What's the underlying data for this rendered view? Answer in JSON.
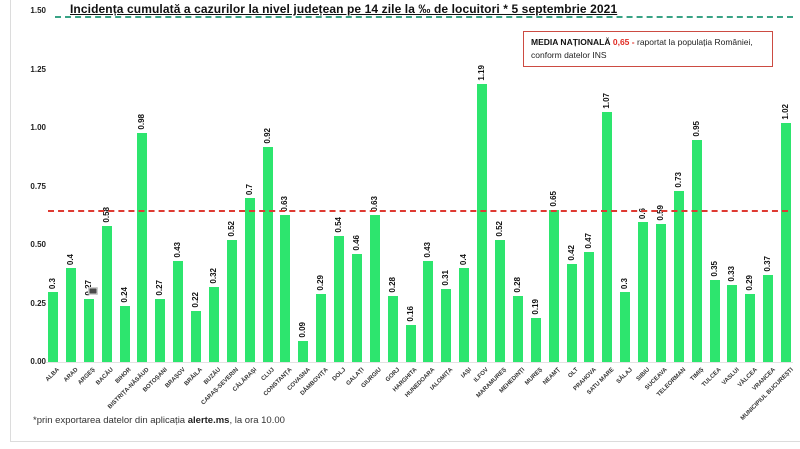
{
  "title": "Incidența cumulată a cazurilor la nivel județean pe 14 zile la ‰ de locuitori * 5 septembrie 2021",
  "legend": {
    "label": "MEDIA NAȚIONALĂ",
    "value": "0,65 -",
    "line1_rest": "raportat la populația României,",
    "line2": "conform datelor INS"
  },
  "footnote": {
    "prefix": "*prin exportarea datelor din aplicația ",
    "bold": "alerte.ms",
    "suffix": ", la ora 10.00"
  },
  "colors": {
    "bar": "#2de56e",
    "avg_line": "#de3a32",
    "title_dash": "#39a385",
    "legend_border": "#cc4b42",
    "value_red": "#e02b22"
  },
  "chart_data": {
    "type": "bar",
    "title": "Incidența cumulată a cazurilor la nivel județean pe 14 zile la ‰ de locuitori * 5 septembrie 2021",
    "ylim": [
      0,
      1.5
    ],
    "yticks": [
      "1.50",
      "1.25",
      "1.00",
      "0.75",
      "0.50",
      "0.25",
      "0.00"
    ],
    "national_average": 0.65,
    "grid": false,
    "legend_position": "top-right",
    "categories": [
      "ALBA",
      "ARAD",
      "ARGEȘ",
      "BACĂU",
      "BIHOR",
      "BISTRIȚA-NĂSĂUD",
      "BOTOȘANI",
      "BRAȘOV",
      "BRĂILA",
      "BUZĂU",
      "CARAȘ-SEVERIN",
      "CĂLĂRAȘI",
      "CLUJ",
      "CONSTANȚA",
      "COVASNA",
      "DÂMBOVIȚA",
      "DOLJ",
      "GALAȚI",
      "GIURGIU",
      "GORJ",
      "HARGHITA",
      "HUNEDOARA",
      "IALOMIȚA",
      "IAȘI",
      "ILFOV",
      "MARAMUREȘ",
      "MEHEDINȚI",
      "MUREȘ",
      "NEAMȚ",
      "OLT",
      "PRAHOVA",
      "SATU MARE",
      "SĂLAJ",
      "SIBIU",
      "SUCEAVA",
      "TELEORMAN",
      "TIMIȘ",
      "TULCEA",
      "VASLUI",
      "VÂLCEA",
      "VRANCEA",
      "MUNICIPIUL BUCUREȘTI"
    ],
    "values": [
      0.3,
      0.4,
      0.27,
      0.58,
      0.24,
      0.98,
      0.27,
      0.43,
      0.22,
      0.32,
      0.52,
      0.7,
      0.92,
      0.63,
      0.09,
      0.29,
      0.54,
      0.46,
      0.63,
      0.28,
      0.16,
      0.43,
      0.31,
      0.4,
      1.19,
      0.52,
      0.28,
      0.19,
      0.65,
      0.42,
      0.47,
      1.07,
      0.3,
      0.6,
      0.59,
      0.73,
      0.95,
      0.35,
      0.33,
      0.29,
      0.37,
      1.02
    ]
  }
}
